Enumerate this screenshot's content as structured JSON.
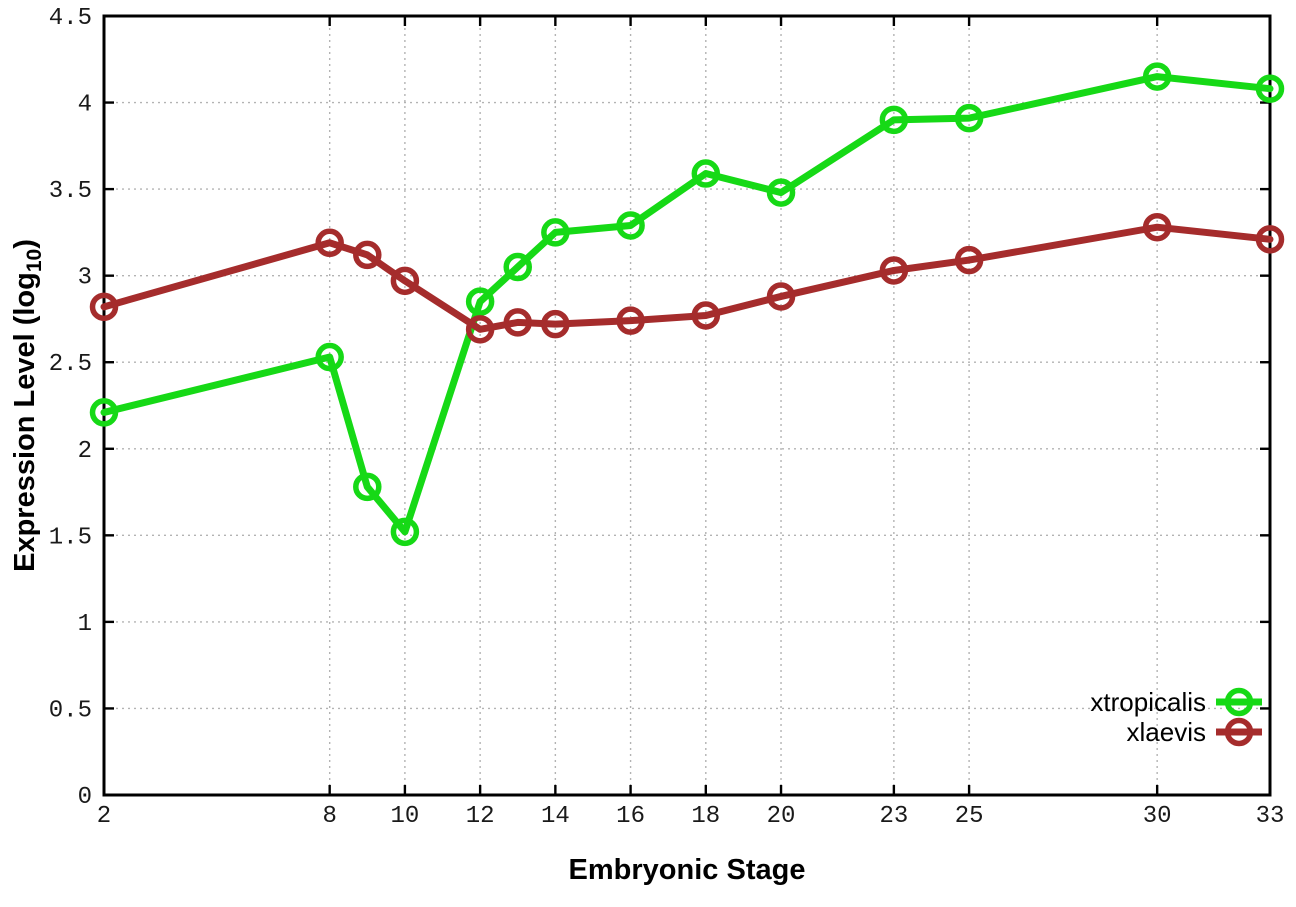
{
  "chart_data": {
    "type": "line",
    "title": "",
    "xlabel": "Embryonic Stage",
    "ylabel": "Expression Level (log10)",
    "ylabel_parts": {
      "main": "Expression Level (log",
      "sub": "10",
      "end": ")"
    },
    "x": [
      2,
      8,
      9,
      10,
      12,
      13,
      14,
      16,
      18,
      20,
      23,
      25,
      30,
      33
    ],
    "xticks": [
      2,
      8,
      10,
      12,
      14,
      16,
      18,
      20,
      23,
      25,
      30,
      33
    ],
    "yticks": [
      0,
      0.5,
      1,
      1.5,
      2,
      2.5,
      3,
      3.5,
      4,
      4.5
    ],
    "xlim": [
      2,
      33
    ],
    "ylim": [
      0,
      4.5
    ],
    "grid": true,
    "legend_position": "bottom-right",
    "series": [
      {
        "name": "xtropicalis",
        "color": "#16d916",
        "marker": "open-circle",
        "values": [
          2.21,
          2.53,
          1.78,
          1.52,
          2.85,
          3.05,
          3.25,
          3.29,
          3.59,
          3.48,
          3.9,
          3.91,
          4.15,
          4.08
        ]
      },
      {
        "name": "xlaevis",
        "color": "#a52c2c",
        "marker": "open-circle",
        "values": [
          2.82,
          3.19,
          3.12,
          2.97,
          2.69,
          2.73,
          2.72,
          2.74,
          2.77,
          2.88,
          3.03,
          3.09,
          3.28,
          3.21
        ]
      }
    ]
  },
  "colors": {
    "background": "#ffffff",
    "border": "#000000",
    "grid": "#b3b3b3",
    "tick_text": "#1a1a1a",
    "title_text": "#000000"
  }
}
